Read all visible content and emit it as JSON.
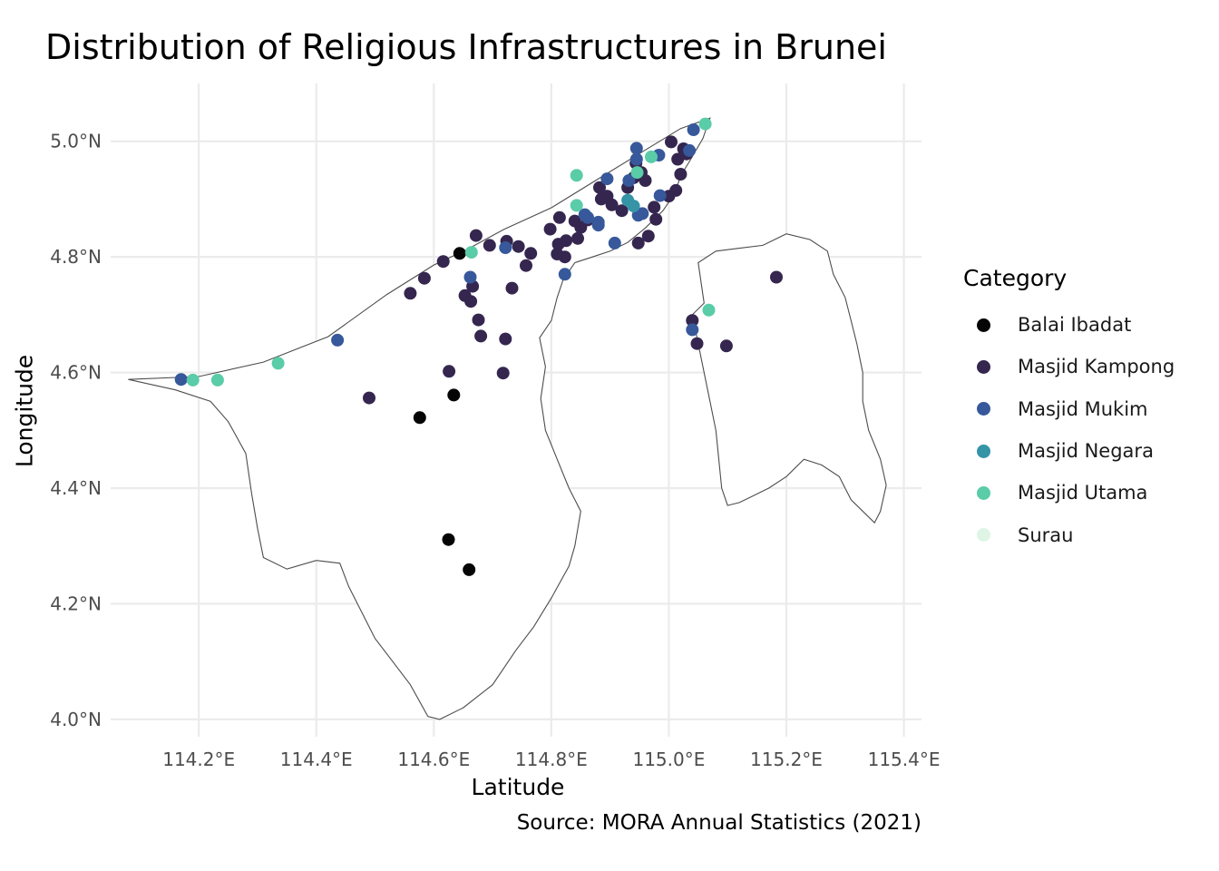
{
  "chart_data": {
    "type": "scatter",
    "title": "Distribution of Religious Infrastructures in Brunei",
    "xlabel": "Latitude",
    "ylabel": "Longitude",
    "caption": "Source: MORA Annual Statistics (2021)",
    "xlim": [
      114.05,
      115.43
    ],
    "ylim": [
      3.97,
      5.1
    ],
    "x_ticks": [
      114.2,
      114.4,
      114.6,
      114.8,
      115.0,
      115.2,
      115.4
    ],
    "x_tick_labels": [
      "114.2°E",
      "114.4°E",
      "114.6°E",
      "114.8°E",
      "115.0°E",
      "115.2°E",
      "115.4°E"
    ],
    "y_ticks": [
      4.0,
      4.2,
      4.4,
      4.6,
      4.8,
      5.0
    ],
    "y_tick_labels": [
      "4.0°N",
      "4.2°N",
      "4.4°N",
      "4.6°N",
      "4.8°N",
      "5.0°N"
    ],
    "grid": true,
    "legend": {
      "title": "Category",
      "placement": "right",
      "items": [
        {
          "label": "Balai Ibadat",
          "color": "#050505"
        },
        {
          "label": "Masjid Kampong",
          "color": "#35264f"
        },
        {
          "label": "Masjid Mukim",
          "color": "#37589a"
        },
        {
          "label": "Masjid Negara",
          "color": "#3594a6"
        },
        {
          "label": "Masjid Utama",
          "color": "#5acca7"
        },
        {
          "label": "Surau",
          "color": "#def5e5"
        }
      ]
    },
    "series": [
      {
        "name": "Balai Ibadat",
        "x": [
          114.644,
          114.634,
          114.576,
          114.625,
          114.66
        ],
        "y": [
          4.806,
          4.561,
          4.522,
          4.311,
          4.259
        ]
      },
      {
        "name": "Masjid Kampong",
        "x": [
          115.004,
          115.025,
          115.015,
          115.03,
          115.02,
          115.0,
          115.012,
          114.975,
          114.978,
          114.965,
          114.948,
          114.93,
          114.94,
          114.96,
          114.944,
          114.953,
          114.92,
          114.895,
          114.882,
          114.903,
          114.885,
          114.84,
          114.845,
          114.862,
          114.85,
          114.823,
          114.812,
          114.798,
          114.81,
          114.825,
          114.814,
          114.765,
          114.744,
          114.757,
          114.724,
          114.733,
          114.695,
          114.672,
          114.616,
          114.584,
          114.56,
          114.666,
          114.653,
          114.663,
          114.676,
          114.68,
          114.722,
          114.626,
          114.718,
          114.49,
          115.04,
          115.048,
          115.098,
          115.183
        ],
        "y": [
          4.999,
          4.987,
          4.969,
          4.978,
          4.943,
          4.905,
          4.915,
          4.886,
          4.865,
          4.836,
          4.824,
          4.92,
          4.937,
          4.932,
          4.962,
          4.946,
          4.88,
          4.905,
          4.92,
          4.89,
          4.9,
          4.862,
          4.832,
          4.864,
          4.851,
          4.8,
          4.822,
          4.848,
          4.805,
          4.828,
          4.868,
          4.806,
          4.818,
          4.785,
          4.827,
          4.746,
          4.82,
          4.837,
          4.792,
          4.763,
          4.737,
          4.749,
          4.733,
          4.723,
          4.691,
          4.663,
          4.658,
          4.602,
          4.599,
          4.556,
          4.69,
          4.65,
          4.646,
          4.765
        ]
      },
      {
        "name": "Masjid Mukim",
        "x": [
          115.042,
          115.035,
          114.983,
          114.945,
          114.945,
          114.985,
          114.895,
          114.88,
          114.857,
          114.948,
          114.955,
          114.932,
          114.88,
          114.908,
          114.862,
          114.823,
          114.722,
          114.662,
          114.436,
          114.17,
          115.04
        ],
        "y": [
          5.02,
          4.984,
          4.976,
          4.988,
          4.969,
          4.906,
          4.935,
          4.86,
          4.873,
          4.872,
          4.875,
          4.932,
          4.855,
          4.824,
          4.868,
          4.77,
          4.816,
          4.765,
          4.656,
          4.588,
          4.674
        ]
      },
      {
        "name": "Masjid Negara",
        "x": [
          114.93,
          114.94
        ],
        "y": [
          4.898,
          4.888
        ]
      },
      {
        "name": "Masjid Utama",
        "x": [
          115.062,
          114.97,
          114.946,
          114.843,
          114.843,
          114.664,
          114.19,
          114.232,
          114.335,
          115.068
        ],
        "y": [
          5.03,
          4.973,
          4.946,
          4.941,
          4.889,
          4.808,
          4.587,
          4.587,
          4.616,
          4.708
        ]
      },
      {
        "name": "Surau",
        "x": [],
        "y": []
      }
    ],
    "regions": [
      {
        "name": "Brunei western part",
        "lonlat": [
          [
            114.08,
            4.588
          ],
          [
            114.2,
            4.593
          ],
          [
            114.31,
            4.618
          ],
          [
            114.42,
            4.662
          ],
          [
            114.52,
            4.735
          ],
          [
            114.6,
            4.786
          ],
          [
            114.655,
            4.812
          ],
          [
            114.72,
            4.848
          ],
          [
            114.8,
            4.885
          ],
          [
            114.88,
            4.935
          ],
          [
            114.96,
            4.985
          ],
          [
            115.02,
            5.022
          ],
          [
            115.07,
            5.04
          ],
          [
            115.058,
            5.005
          ],
          [
            115.035,
            4.965
          ],
          [
            115.02,
            4.94
          ],
          [
            115.01,
            4.91
          ],
          [
            114.99,
            4.88
          ],
          [
            114.96,
            4.85
          ],
          [
            114.93,
            4.825
          ],
          [
            114.9,
            4.81
          ],
          [
            114.87,
            4.8
          ],
          [
            114.84,
            4.79
          ],
          [
            114.82,
            4.76
          ],
          [
            114.81,
            4.73
          ],
          [
            114.8,
            4.69
          ],
          [
            114.78,
            4.66
          ],
          [
            114.79,
            4.61
          ],
          [
            114.782,
            4.555
          ],
          [
            114.79,
            4.5
          ],
          [
            114.81,
            4.45
          ],
          [
            114.83,
            4.4
          ],
          [
            114.85,
            4.36
          ],
          [
            114.84,
            4.3
          ],
          [
            114.83,
            4.265
          ],
          [
            114.8,
            4.21
          ],
          [
            114.77,
            4.16
          ],
          [
            114.74,
            4.12
          ],
          [
            114.7,
            4.06
          ],
          [
            114.65,
            4.02
          ],
          [
            114.61,
            4.0
          ],
          [
            114.59,
            4.005
          ],
          [
            114.56,
            4.06
          ],
          [
            114.53,
            4.1
          ],
          [
            114.5,
            4.14
          ],
          [
            114.475,
            4.19
          ],
          [
            114.455,
            4.23
          ],
          [
            114.44,
            4.27
          ],
          [
            114.4,
            4.275
          ],
          [
            114.35,
            4.26
          ],
          [
            114.31,
            4.28
          ],
          [
            114.3,
            4.33
          ],
          [
            114.29,
            4.39
          ],
          [
            114.28,
            4.46
          ],
          [
            114.25,
            4.515
          ],
          [
            114.22,
            4.55
          ],
          [
            114.16,
            4.57
          ],
          [
            114.08,
            4.588
          ]
        ]
      },
      {
        "name": "Brunei eastern part (Temburong)",
        "lonlat": [
          [
            115.06,
            4.72
          ],
          [
            115.05,
            4.79
          ],
          [
            115.08,
            4.81
          ],
          [
            115.12,
            4.815
          ],
          [
            115.16,
            4.82
          ],
          [
            115.2,
            4.84
          ],
          [
            115.24,
            4.83
          ],
          [
            115.27,
            4.81
          ],
          [
            115.28,
            4.77
          ],
          [
            115.3,
            4.73
          ],
          [
            115.31,
            4.69
          ],
          [
            115.32,
            4.65
          ],
          [
            115.33,
            4.6
          ],
          [
            115.33,
            4.55
          ],
          [
            115.34,
            4.5
          ],
          [
            115.36,
            4.45
          ],
          [
            115.37,
            4.405
          ],
          [
            115.36,
            4.36
          ],
          [
            115.35,
            4.34
          ],
          [
            115.31,
            4.38
          ],
          [
            115.29,
            4.42
          ],
          [
            115.26,
            4.44
          ],
          [
            115.23,
            4.45
          ],
          [
            115.2,
            4.42
          ],
          [
            115.17,
            4.4
          ],
          [
            115.14,
            4.385
          ],
          [
            115.12,
            4.375
          ],
          [
            115.1,
            4.37
          ],
          [
            115.09,
            4.4
          ],
          [
            115.085,
            4.45
          ],
          [
            115.08,
            4.5
          ],
          [
            115.07,
            4.55
          ],
          [
            115.06,
            4.6
          ],
          [
            115.05,
            4.65
          ],
          [
            115.04,
            4.7
          ],
          [
            115.06,
            4.72
          ]
        ]
      }
    ]
  }
}
